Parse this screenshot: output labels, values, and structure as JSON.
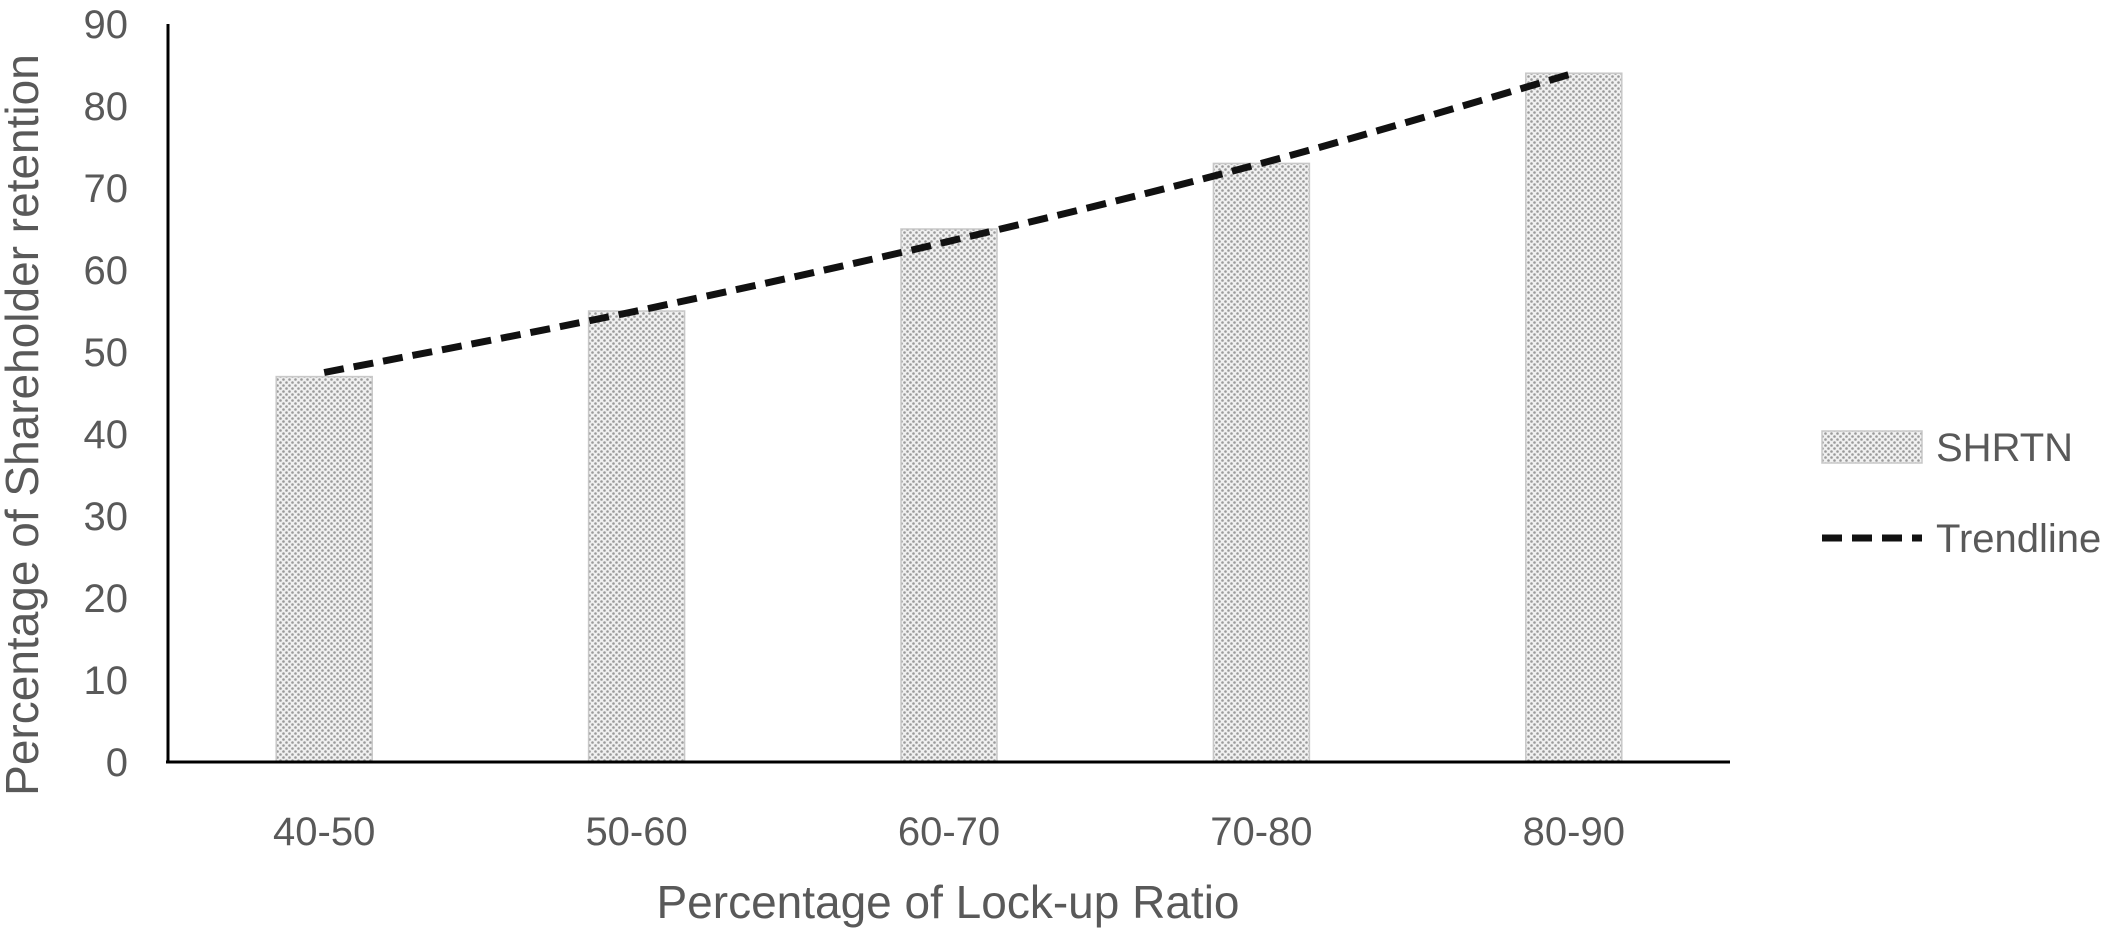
{
  "chart_data": {
    "type": "bar",
    "title": "",
    "xlabel": "Percentage of Lock-up Ratio",
    "ylabel": "Percentage of Shareholder retention",
    "categories": [
      "40-50",
      "50-60",
      "60-70",
      "70-80",
      "80-90"
    ],
    "series": [
      {
        "name": "SHRTN",
        "type": "bar",
        "values": [
          47,
          55,
          65,
          73,
          84
        ]
      },
      {
        "name": "Trendline",
        "type": "line",
        "style": "dashed",
        "values": [
          47.5,
          55,
          63.5,
          73,
          84
        ]
      }
    ],
    "ylim": [
      0,
      90
    ],
    "yticks": [
      0,
      10,
      20,
      30,
      40,
      50,
      60,
      70,
      80,
      90
    ],
    "grid": false,
    "legend": "right",
    "colors": {
      "bar_fill": "#f0f0f0",
      "bar_dots": "#9a9a9a",
      "trendline": "#111111",
      "axis": "#000000",
      "text": "#595959"
    }
  }
}
